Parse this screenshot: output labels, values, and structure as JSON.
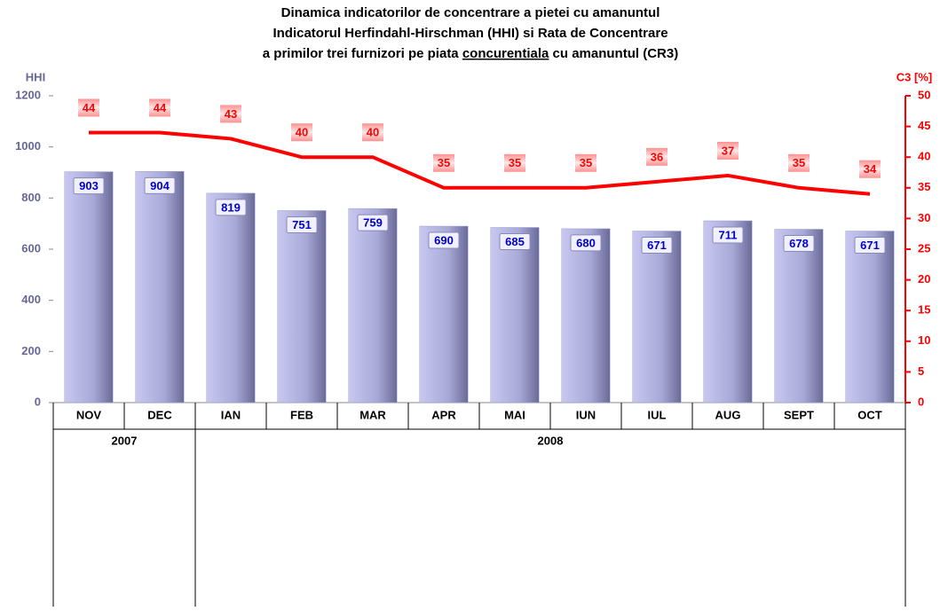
{
  "chart_data": {
    "type": "bar-line",
    "title": [
      "Dinamica indicatorilor de concentrare a pietei cu amanuntul",
      "Indicatorul Herfindahl-Hirschman (HHI) si Rata de Concentrare",
      [
        "a primilor trei furnizori pe piata ",
        "concurentiala",
        " cu amanuntul (CR3)"
      ]
    ],
    "y_label": "HHI",
    "y2_label": "C3 [%]",
    "groups": [
      {
        "label": "2007",
        "categories": [
          "NOV",
          "DEC"
        ]
      },
      {
        "label": "2008",
        "categories": [
          "IAN",
          "FEB",
          "MAR",
          "APR",
          "MAI",
          "IUN",
          "IUL",
          "AUG",
          "SEPT",
          "OCT"
        ]
      }
    ],
    "series": [
      {
        "name": "HHI",
        "type": "bar",
        "color": "#9c9cd0",
        "label_color": "#0000cc",
        "values": [
          903,
          904,
          819,
          751,
          759,
          690,
          685,
          680,
          671,
          711,
          678,
          671
        ]
      },
      {
        "name": "CR3",
        "type": "line",
        "axis": "y2",
        "color": "#ff0000",
        "label_color": "#ff0000",
        "values": [
          44,
          44,
          43,
          40,
          40,
          35,
          35,
          35,
          36,
          37,
          35,
          34
        ]
      }
    ],
    "ylim": [
      0,
      1200
    ],
    "yticks": [
      0,
      200,
      400,
      600,
      800,
      1000,
      1200
    ],
    "y2lim": [
      0,
      50
    ],
    "y2ticks": [
      0,
      5,
      10,
      15,
      20,
      25,
      30,
      35,
      40,
      45,
      50
    ],
    "y_color": "#666699",
    "y2_color": "#ff0000"
  }
}
